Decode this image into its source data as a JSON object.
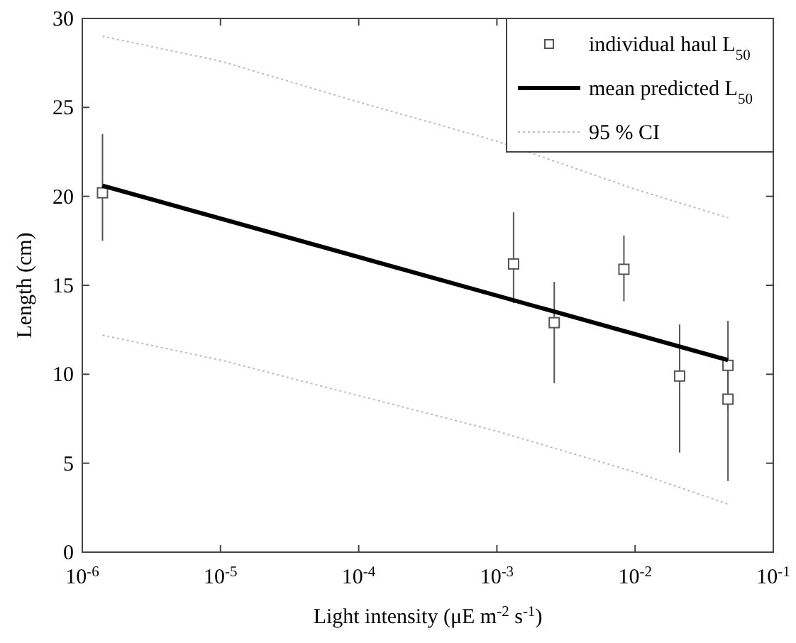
{
  "chart_data": {
    "type": "scatter",
    "xlabel": "Light intensity (μE m$^{-2}$ s$^{-1}$)",
    "ylabel": "Length (cm)",
    "log": "x",
    "grid": false,
    "legend": "top right",
    "xlim": [
      1e-06,
      0.1
    ],
    "ylim": [
      0,
      30
    ],
    "xticks": [
      {
        "value": 1e-06,
        "label": "10$^{-6}$"
      },
      {
        "value": 1e-05,
        "label": "10$^{-5}$"
      },
      {
        "value": 0.0001,
        "label": "10$^{-4}$"
      },
      {
        "value": 0.001,
        "label": "10$^{-3}$"
      },
      {
        "value": 0.01,
        "label": "10$^{-2}$"
      },
      {
        "value": 0.1,
        "label": "10$^{-1}$"
      }
    ],
    "yticks": [
      0,
      5,
      10,
      15,
      20,
      25,
      30
    ],
    "series": [
      {
        "name": "individual haul L$_{50}$",
        "marker": "square",
        "color": "#555555",
        "x": [
          1.4e-06,
          0.00132,
          0.0026,
          0.0083,
          0.021,
          0.047,
          0.047
        ],
        "values": [
          20.2,
          16.2,
          12.9,
          15.9,
          9.9,
          10.5,
          8.6
        ],
        "errors": [
          [
            17.5,
            23.5
          ],
          [
            14.0,
            19.1
          ],
          [
            9.5,
            15.2
          ],
          [
            14.1,
            17.8
          ],
          [
            5.6,
            12.8
          ],
          [
            8.0,
            13.0
          ],
          [
            4.0,
            11.0
          ]
        ]
      },
      {
        "name": "mean predicted L$_{50}$",
        "type": "line",
        "line_style": "solid",
        "color": "#000000",
        "x": [
          1.4e-06,
          0.047
        ],
        "values": [
          20.6,
          10.8
        ]
      },
      {
        "name": "95 % CI",
        "type": "line",
        "line_style": "dotted",
        "color": "#bbbbbb",
        "x": [
          1.4e-06,
          1e-05,
          0.0001,
          0.001,
          0.01,
          0.047
        ],
        "values": [
          29.0,
          27.6,
          25.3,
          23.1,
          20.4,
          18.8
        ]
      },
      {
        "type": "line",
        "line_style": "dotted",
        "color": "#bbbbbb",
        "x": [
          1.4e-06,
          1e-05,
          0.0001,
          0.001,
          0.01,
          0.047
        ],
        "values": [
          12.2,
          10.8,
          8.8,
          6.8,
          4.5,
          2.7
        ]
      }
    ]
  }
}
